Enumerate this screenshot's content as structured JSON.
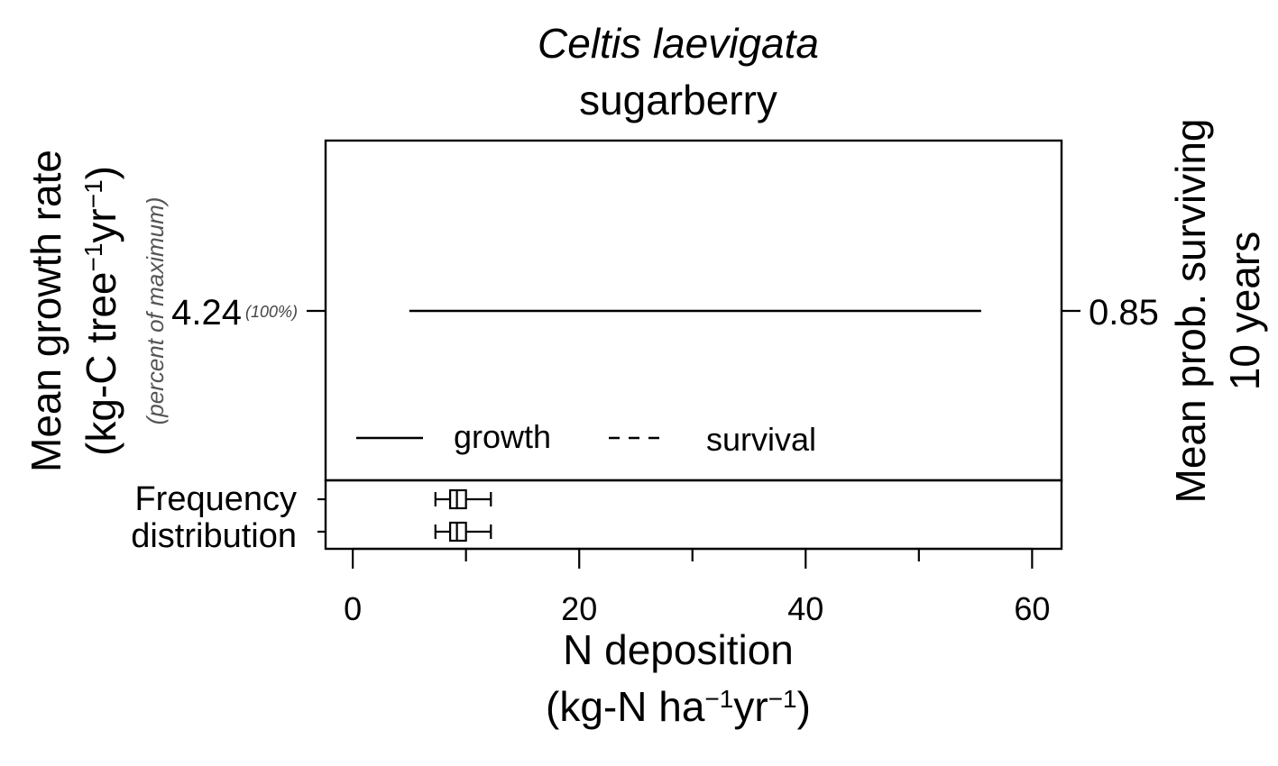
{
  "chart_data": {
    "type": "line",
    "title": "Celtis laevigata",
    "subtitle": "sugarberry",
    "xlabel_line1": "N deposition",
    "xlabel_line2": {
      "pre": "(kg-N ha",
      "sup1": "−1",
      "mid": "yr",
      "sup2": "−1",
      "post": ")"
    },
    "ylabel_left_line1": "Mean growth rate",
    "ylabel_left_line2": {
      "pre": "(kg-C tree",
      "sup1": "−1",
      "mid": "yr",
      "sup2": "−1",
      "post": ")"
    },
    "ylabel_left_note": "(percent of maximum)",
    "ylabel_right_line1": "Mean prob. surviving",
    "ylabel_right_line2": "10 years",
    "xlim": [
      -2.4,
      62.6
    ],
    "x_ticks_major": [
      0,
      20,
      40,
      60
    ],
    "x_tick_labels": [
      "0",
      "20",
      "40",
      "60"
    ],
    "x_ticks_minor": [
      10,
      30,
      50
    ],
    "left_tick": {
      "label": "4.24",
      "pct": "(100%)"
    },
    "right_tick": {
      "label": "0.85"
    },
    "series": [
      {
        "name": "growth",
        "style": "solid",
        "x": [
          5.0,
          55.5
        ],
        "y": [
          4.24,
          4.24
        ]
      },
      {
        "name": "survival",
        "style": "dashed",
        "x": [],
        "y": []
      }
    ],
    "legend": {
      "position": "bottom-left",
      "entries": [
        "growth",
        "survival"
      ]
    },
    "frequency_panel": {
      "label_line1": "Frequency",
      "label_line2": "distribution",
      "boxplots": [
        {
          "whisker_low": 7.3,
          "q1": 8.6,
          "median": 9.2,
          "q3": 10.0,
          "whisker_high": 12.2
        },
        {
          "whisker_low": 7.3,
          "q1": 8.6,
          "median": 9.2,
          "q3": 10.0,
          "whisker_high": 12.2
        }
      ]
    }
  }
}
